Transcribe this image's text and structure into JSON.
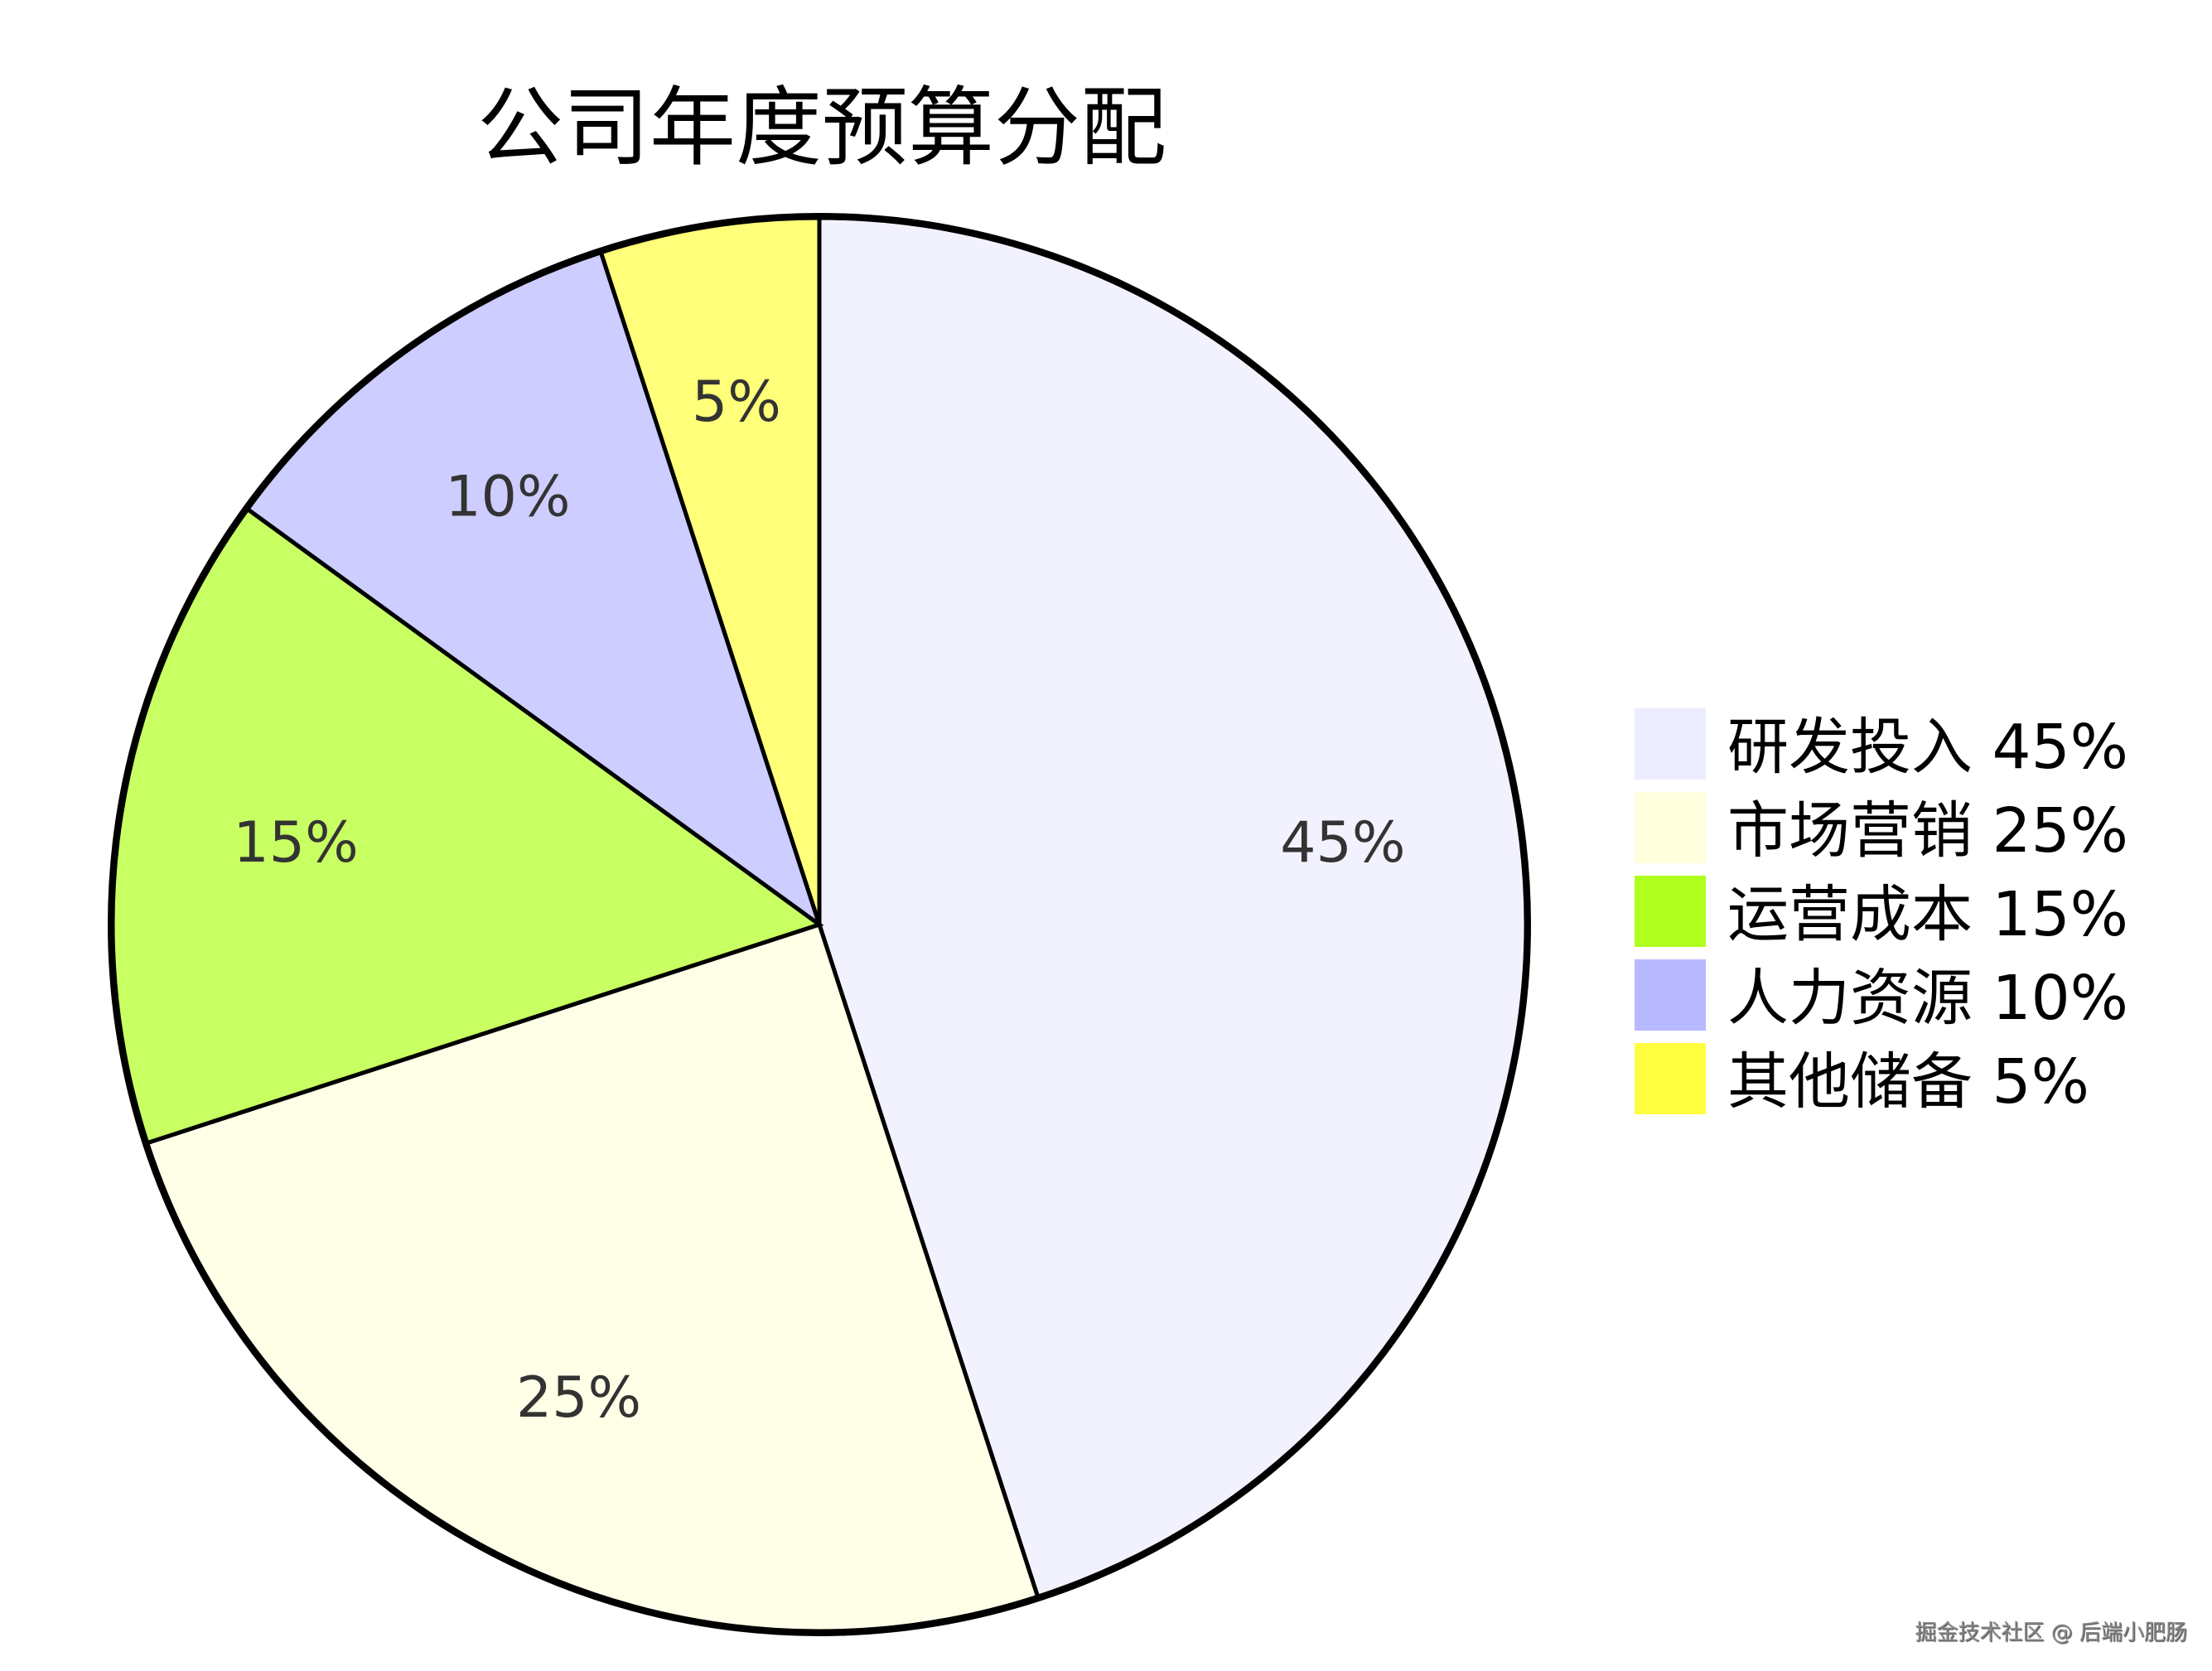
{
  "chart_data": {
    "type": "pie",
    "title": "公司年度预算分配",
    "slices": [
      {
        "label": "研发投入",
        "value": 45,
        "display": "45%",
        "legend": "研发投入 45%",
        "color": "#ECECFF"
      },
      {
        "label": "市场营销",
        "value": 25,
        "display": "25%",
        "legend": "市场营销 25%",
        "color": "#FFFFDE"
      },
      {
        "label": "运营成本",
        "value": 15,
        "display": "15%",
        "legend": "运营成本 15%",
        "color": "#B0FF1F"
      },
      {
        "label": "人力资源",
        "value": 10,
        "display": "10%",
        "legend": "人力资源 10%",
        "color": "#B8B8FF"
      },
      {
        "label": "其他储备",
        "value": 5,
        "display": "5%",
        "legend": "其他储备 5%",
        "color": "#FFFF40"
      }
    ],
    "legend_position": "right"
  },
  "watermark": "掘金技术社区 @ 后端小肥肠"
}
